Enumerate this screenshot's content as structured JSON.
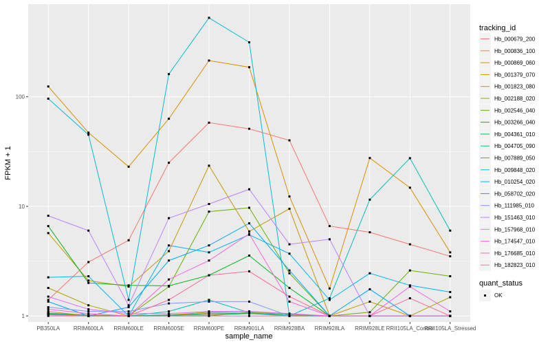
{
  "chart_data": {
    "type": "line",
    "xlabel": "sample_name",
    "ylabel": "FPKM + 1",
    "yscale": "log10",
    "ylim": [
      0.88,
      700
    ],
    "ytick_values": [
      1,
      10,
      100
    ],
    "ytick_labels": [
      "1",
      "10",
      "100"
    ],
    "categories": [
      "PB350LA",
      "RRIM600LA",
      "RRIM600LE",
      "RRIM600SE",
      "RRIM600PE",
      "RRIM901LA",
      "RRIM928BA",
      "RRIM928LA",
      "RRIM928LE",
      "RRII105LA_Control",
      "RRII105LA_Stressed"
    ],
    "legend_color_title": "tracking_id",
    "legend_shape_title": "quant_status",
    "shape_legend": {
      "label": "OK",
      "icon": "square-point"
    },
    "series": [
      {
        "name": "Hb_000679_200",
        "color": "#F8766D",
        "values": [
          1.4,
          3.1,
          4.9,
          25,
          58,
          51,
          40,
          6.6,
          5.8,
          4.5,
          3.5
        ]
      },
      {
        "name": "Hb_000836_100",
        "color": "#EC8239",
        "values": [
          1.1,
          1.0,
          1.0,
          1.02,
          1.05,
          1.05,
          1.0,
          1.0,
          1.0,
          1.0,
          1.0
        ]
      },
      {
        "name": "Hb_000869_060",
        "color": "#DB8E00",
        "values": [
          124,
          47,
          23,
          63,
          214,
          186,
          12.3,
          1.78,
          27.6,
          14.8,
          3.8
        ]
      },
      {
        "name": "Hb_001379_070",
        "color": "#C79800",
        "values": [
          5.7,
          2.1,
          1.85,
          3.9,
          23.5,
          5.9,
          9.5,
          1.0,
          1.35,
          1.0,
          1.0
        ]
      },
      {
        "name": "Hb_001823_080",
        "color": "#AEA200",
        "values": [
          1.8,
          1.25,
          1.0,
          1.02,
          1.08,
          1.1,
          1.02,
          1.0,
          1.0,
          1.0,
          1.48
        ]
      },
      {
        "name": "Hb_002188_020",
        "color": "#8FAA00",
        "values": [
          1.05,
          1.0,
          1.0,
          1.0,
          1.0,
          1.08,
          1.0,
          1.0,
          1.0,
          1.0,
          1.0
        ]
      },
      {
        "name": "Hb_002546_040",
        "color": "#64B200",
        "values": [
          1.06,
          1.02,
          1.0,
          1.85,
          8.95,
          9.7,
          2.45,
          1.0,
          1.08,
          2.6,
          2.3
        ]
      },
      {
        "name": "Hb_003266_040",
        "color": "#00B81B",
        "values": [
          6.6,
          2.0,
          1.9,
          1.88,
          2.35,
          3.55,
          1.8,
          1.0,
          1.0,
          1.0,
          1.0
        ]
      },
      {
        "name": "Hb_004361_010",
        "color": "#00BD5C",
        "values": [
          1.03,
          1.0,
          1.0,
          1.02,
          1.02,
          1.05,
          1.04,
          1.0,
          1.0,
          1.0,
          1.0
        ]
      },
      {
        "name": "Hb_004705_090",
        "color": "#00C08E",
        "values": [
          1.04,
          1.0,
          1.0,
          1.0,
          1.06,
          1.06,
          1.0,
          1.0,
          1.0,
          1.0,
          1.0
        ]
      },
      {
        "name": "Hb_007889_050",
        "color": "#00C1B7",
        "values": [
          1.06,
          1.0,
          1.0,
          1.1,
          1.4,
          1.07,
          1.0,
          1.45,
          11.5,
          27.5,
          6.0
        ]
      },
      {
        "name": "Hb_009848_020",
        "color": "#00BDD4",
        "values": [
          96,
          45,
          1.4,
          161,
          525,
          314,
          1.0,
          1.0,
          1.0,
          1.0,
          1.0
        ]
      },
      {
        "name": "Hb_010254_020",
        "color": "#00B5EE",
        "values": [
          2.25,
          2.3,
          1.0,
          4.4,
          3.8,
          5.5,
          3.7,
          1.4,
          2.45,
          1.9,
          1.65
        ]
      },
      {
        "name": "Hb_058702_020",
        "color": "#00A7FF",
        "values": [
          1.35,
          1.0,
          1.2,
          3.2,
          4.4,
          7.0,
          2.6,
          1.0,
          1.75,
          1.0,
          1.0
        ]
      },
      {
        "name": "Hb_111985_010",
        "color": "#7F96FF",
        "values": [
          1.2,
          1.1,
          1.1,
          1.3,
          1.35,
          1.35,
          1.0,
          1.0,
          1.0,
          1.0,
          1.0
        ]
      },
      {
        "name": "Hb_151463_010",
        "color": "#BC81FF",
        "values": [
          8.2,
          6.0,
          1.25,
          7.8,
          10.5,
          14.3,
          4.5,
          5.0,
          1.0,
          1.0,
          1.0
        ]
      },
      {
        "name": "Hb_157968_010",
        "color": "#E26EF7",
        "values": [
          1.5,
          1.15,
          1.05,
          1.05,
          1.1,
          1.1,
          1.05,
          1.0,
          1.0,
          1.0,
          1.0
        ]
      },
      {
        "name": "Hb_174547_010",
        "color": "#F863DF",
        "values": [
          1.15,
          1.05,
          1.0,
          2.15,
          3.2,
          5.6,
          1.35,
          1.0,
          1.0,
          1.85,
          1.1
        ]
      },
      {
        "name": "Hb_176685_010",
        "color": "#FF62BF",
        "values": [
          1.0,
          1.0,
          1.0,
          1.0,
          1.0,
          1.0,
          1.0,
          1.0,
          1.0,
          1.0,
          1.0
        ]
      },
      {
        "name": "Hb_182823_010",
        "color": "#FF6A98",
        "values": [
          1.02,
          1.0,
          1.0,
          1.4,
          2.35,
          2.55,
          1.5,
          1.0,
          1.0,
          1.45,
          1.0
        ]
      }
    ]
  }
}
